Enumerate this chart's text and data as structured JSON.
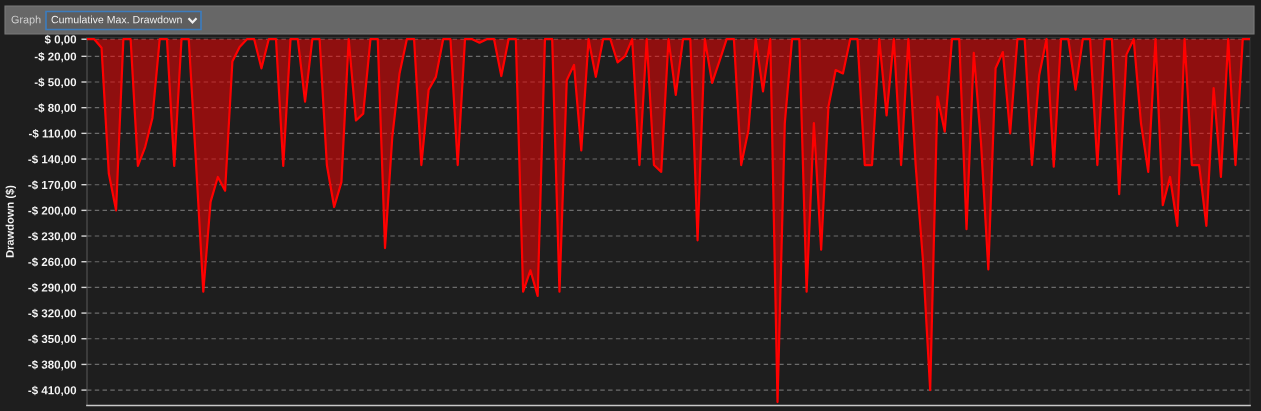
{
  "chart_data": {
    "type": "area",
    "title": "Cumulative Max. Drawdown",
    "annotations": [
      "Graph"
    ],
    "ylabel": "Drawdown ($)",
    "categories": [
      null,
      null,
      null,
      null,
      null,
      null,
      null,
      null,
      null,
      null,
      null,
      null,
      null,
      null,
      null,
      null,
      null,
      null,
      null,
      null,
      null,
      null,
      null,
      null,
      null,
      null,
      null,
      null,
      null,
      null,
      null,
      null,
      null,
      null,
      null,
      null,
      null,
      null,
      null,
      null,
      null,
      null,
      null,
      null,
      null,
      null,
      null,
      null,
      null,
      null,
      null,
      null,
      null,
      null,
      null,
      null,
      null,
      null,
      null,
      null,
      null,
      null,
      null,
      null,
      null,
      null,
      null,
      null,
      null,
      null,
      null,
      null,
      null,
      null,
      null,
      null,
      null,
      null,
      null,
      null,
      null,
      null,
      null,
      null,
      null,
      null,
      null,
      null,
      null,
      null,
      null,
      null,
      null,
      null,
      null,
      null,
      null,
      null,
      null,
      null,
      null,
      null,
      null,
      null,
      null,
      null,
      null,
      null,
      null,
      null,
      null,
      null,
      null,
      null,
      null,
      null,
      null,
      null,
      null,
      null,
      null,
      null,
      null,
      null,
      null,
      null,
      null,
      null,
      null,
      null,
      null,
      null,
      null,
      null,
      null,
      null,
      null,
      null,
      null,
      null,
      null,
      null,
      null,
      null,
      null,
      null,
      null,
      null,
      null,
      null,
      null,
      null,
      null,
      null,
      null,
      null,
      null,
      null,
      null,
      null,
      null
    ],
    "series": [
      {
        "color": "#ff0000",
        "values": [
          0,
          0,
          -10,
          -157,
          -200,
          0,
          0,
          -148,
          -126,
          -92,
          0,
          0,
          -148,
          0,
          0,
          -145,
          -295,
          -190,
          -161,
          -177,
          -26,
          -9,
          0,
          0,
          -34,
          0,
          0,
          -148,
          0,
          0,
          -73,
          0,
          0,
          -147,
          -196,
          -167,
          0,
          -95,
          -87,
          0,
          0,
          -244,
          -114,
          -40,
          0,
          0,
          -147,
          -59,
          -44,
          0,
          0,
          -147,
          0,
          0,
          -4,
          0,
          0,
          -43,
          0,
          0,
          -295,
          -270,
          -300,
          0,
          0,
          -295,
          -48,
          -30,
          -130,
          0,
          -44,
          0,
          0,
          -27,
          -20,
          0,
          -147,
          0,
          -147,
          -155,
          0,
          -65,
          0,
          0,
          -235,
          0,
          -51,
          -26,
          0,
          0,
          -147,
          -106,
          0,
          -61,
          0,
          -424,
          -98,
          0,
          0,
          -295,
          -98,
          -246,
          -79,
          -36,
          -40,
          0,
          0,
          -147,
          -147,
          0,
          -89,
          0,
          -147,
          0,
          -147,
          -258,
          -410,
          -67,
          -108,
          0,
          0,
          -222,
          -16,
          -122,
          -269,
          -34,
          -15,
          -110,
          0,
          0,
          -147,
          -42,
          0,
          -149,
          0,
          0,
          -59,
          0,
          0,
          -147,
          0,
          0,
          -181,
          -18,
          0,
          -98,
          -155,
          0,
          -194,
          -161,
          -218,
          0,
          -147,
          -147,
          -218,
          -57,
          -161,
          0,
          -147,
          0,
          0
        ]
      }
    ],
    "ylim": [
      -428,
      2
    ],
    "yticks": [
      {
        "value": 0,
        "label": "$ 0,00"
      },
      {
        "value": -20,
        "label": "-$ 20,00"
      },
      {
        "value": -50,
        "label": "-$ 50,00"
      },
      {
        "value": -80,
        "label": "-$ 80,00"
      },
      {
        "value": -110,
        "label": "-$ 110,00"
      },
      {
        "value": -140,
        "label": "-$ 140,00"
      },
      {
        "value": -170,
        "label": "-$ 170,00"
      },
      {
        "value": -200,
        "label": "-$ 200,00"
      },
      {
        "value": -230,
        "label": "-$ 230,00"
      },
      {
        "value": -260,
        "label": "-$ 260,00"
      },
      {
        "value": -290,
        "label": "-$ 290,00"
      },
      {
        "value": -320,
        "label": "-$ 320,00"
      },
      {
        "value": -350,
        "label": "-$ 350,00"
      },
      {
        "value": -380,
        "label": "-$ 380,00"
      },
      {
        "value": -410,
        "label": "-$ 410,00"
      }
    ],
    "grid": "y",
    "tick_labels": "y"
  }
}
